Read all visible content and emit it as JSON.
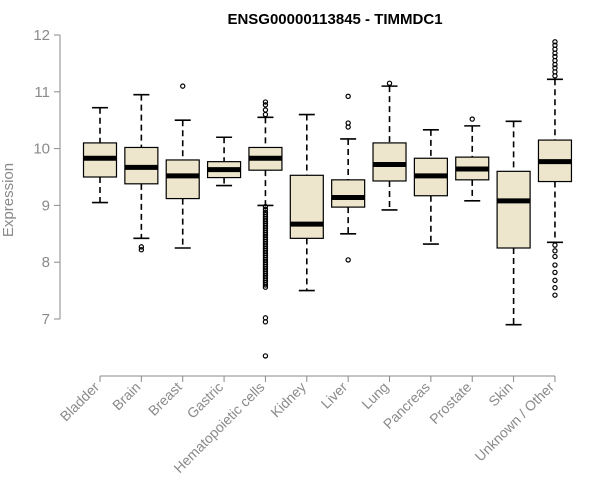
{
  "chart_data": {
    "type": "boxplot",
    "title": "ENSG00000113845 - TIMMDC1",
    "ylabel": "Expression",
    "ylim": [
      6.3,
      12.0
    ],
    "yticks": [
      7,
      8,
      9,
      10,
      11,
      12
    ],
    "colors": {
      "box_fill": "#ede6cc",
      "box_stroke": "#000000",
      "axis": "#8a8a8a",
      "tick_text": "#8a8a8a"
    },
    "categories": [
      "Bladder",
      "Brain",
      "Breast",
      "Gastric",
      "Hematopoietic cells",
      "Kidney",
      "Liver",
      "Lung",
      "Pancreas",
      "Prostate",
      "Skin",
      "Unknown / Other"
    ],
    "boxes": [
      {
        "name": "Bladder",
        "whisker_low": 9.05,
        "q1": 9.5,
        "median": 9.83,
        "q3": 10.1,
        "whisker_high": 10.72,
        "outliers": []
      },
      {
        "name": "Brain",
        "whisker_low": 8.42,
        "q1": 9.38,
        "median": 9.67,
        "q3": 10.02,
        "whisker_high": 10.95,
        "outliers": [
          8.27,
          8.22
        ]
      },
      {
        "name": "Breast",
        "whisker_low": 8.25,
        "q1": 9.12,
        "median": 9.52,
        "q3": 9.8,
        "whisker_high": 10.5,
        "outliers": [
          11.1
        ]
      },
      {
        "name": "Gastric",
        "whisker_low": 9.35,
        "q1": 9.49,
        "median": 9.63,
        "q3": 9.77,
        "whisker_high": 10.2,
        "outliers": []
      },
      {
        "name": "Hematopoietic cells",
        "whisker_low": 9.0,
        "q1": 9.62,
        "median": 9.83,
        "q3": 10.02,
        "whisker_high": 10.55,
        "outliers": [
          10.82,
          10.77,
          10.68,
          10.6,
          8.98,
          8.93,
          8.88,
          8.84,
          8.8,
          8.76,
          8.72,
          8.68,
          8.64,
          8.6,
          8.56,
          8.52,
          8.48,
          8.44,
          8.4,
          8.36,
          8.32,
          8.28,
          8.24,
          8.2,
          8.16,
          8.12,
          8.08,
          8.04,
          8.0,
          7.96,
          7.92,
          7.88,
          7.84,
          7.8,
          7.76,
          7.72,
          7.68,
          7.64,
          7.6,
          7.56,
          7.02,
          6.95,
          6.35
        ]
      },
      {
        "name": "Kidney",
        "whisker_low": 7.5,
        "q1": 8.42,
        "median": 8.67,
        "q3": 9.53,
        "whisker_high": 10.6,
        "outliers": []
      },
      {
        "name": "Liver",
        "whisker_low": 8.5,
        "q1": 8.97,
        "median": 9.14,
        "q3": 9.45,
        "whisker_high": 10.17,
        "outliers": [
          10.45,
          10.38,
          10.92,
          8.04
        ]
      },
      {
        "name": "Lung",
        "whisker_low": 8.92,
        "q1": 9.43,
        "median": 9.72,
        "q3": 10.1,
        "whisker_high": 11.1,
        "outliers": [
          11.15
        ]
      },
      {
        "name": "Pancreas",
        "whisker_low": 8.32,
        "q1": 9.17,
        "median": 9.52,
        "q3": 9.83,
        "whisker_high": 10.33,
        "outliers": []
      },
      {
        "name": "Prostate",
        "whisker_low": 9.08,
        "q1": 9.45,
        "median": 9.64,
        "q3": 9.85,
        "whisker_high": 10.4,
        "outliers": [
          10.52
        ]
      },
      {
        "name": "Skin",
        "whisker_low": 6.9,
        "q1": 8.25,
        "median": 9.08,
        "q3": 9.6,
        "whisker_high": 10.48,
        "outliers": []
      },
      {
        "name": "Unknown / Other",
        "whisker_low": 8.35,
        "q1": 9.42,
        "median": 9.77,
        "q3": 10.15,
        "whisker_high": 11.22,
        "outliers": [
          11.88,
          11.82,
          11.75,
          11.68,
          11.62,
          11.55,
          11.48,
          11.42,
          11.35,
          11.28,
          8.3,
          8.2,
          8.1,
          7.95,
          7.82,
          7.68,
          7.55,
          7.42
        ]
      }
    ]
  }
}
